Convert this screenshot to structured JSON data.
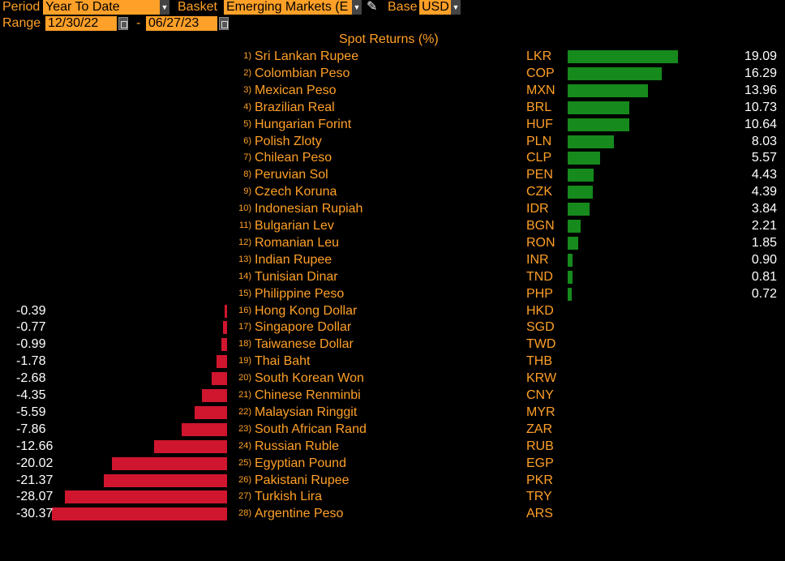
{
  "header": {
    "period_label": "Period",
    "period_value": "Year To Date",
    "basket_label": "Basket",
    "basket_value": "Emerging Markets (E",
    "base_label": "Base",
    "base_value": "USD",
    "range_label": "Range",
    "range_start": "12/30/22",
    "range_sep": "-",
    "range_end": "06/27/23"
  },
  "chart_data": {
    "type": "bar",
    "title": "Spot Returns (%)",
    "rows": [
      {
        "rank": "1)",
        "name": "Sri Lankan Rupee",
        "code": "LKR",
        "value": 19.09,
        "label": "19.09"
      },
      {
        "rank": "2)",
        "name": "Colombian Peso",
        "code": "COP",
        "value": 16.29,
        "label": "16.29"
      },
      {
        "rank": "3)",
        "name": "Mexican Peso",
        "code": "MXN",
        "value": 13.96,
        "label": "13.96"
      },
      {
        "rank": "4)",
        "name": "Brazilian Real",
        "code": "BRL",
        "value": 10.73,
        "label": "10.73"
      },
      {
        "rank": "5)",
        "name": "Hungarian Forint",
        "code": "HUF",
        "value": 10.64,
        "label": "10.64"
      },
      {
        "rank": "6)",
        "name": "Polish Zloty",
        "code": "PLN",
        "value": 8.03,
        "label": "8.03"
      },
      {
        "rank": "7)",
        "name": "Chilean Peso",
        "code": "CLP",
        "value": 5.57,
        "label": "5.57"
      },
      {
        "rank": "8)",
        "name": "Peruvian Sol",
        "code": "PEN",
        "value": 4.43,
        "label": "4.43"
      },
      {
        "rank": "9)",
        "name": "Czech Koruna",
        "code": "CZK",
        "value": 4.39,
        "label": "4.39"
      },
      {
        "rank": "10)",
        "name": "Indonesian Rupiah",
        "code": "IDR",
        "value": 3.84,
        "label": "3.84"
      },
      {
        "rank": "11)",
        "name": "Bulgarian Lev",
        "code": "BGN",
        "value": 2.21,
        "label": "2.21"
      },
      {
        "rank": "12)",
        "name": "Romanian Leu",
        "code": "RON",
        "value": 1.85,
        "label": "1.85"
      },
      {
        "rank": "13)",
        "name": "Indian Rupee",
        "code": "INR",
        "value": 0.9,
        "label": "0.90"
      },
      {
        "rank": "14)",
        "name": "Tunisian Dinar",
        "code": "TND",
        "value": 0.81,
        "label": "0.81"
      },
      {
        "rank": "15)",
        "name": "Philippine Peso",
        "code": "PHP",
        "value": 0.72,
        "label": "0.72"
      },
      {
        "rank": "16)",
        "name": "Hong Kong Dollar",
        "code": "HKD",
        "value": -0.39,
        "label": "-0.39"
      },
      {
        "rank": "17)",
        "name": "Singapore Dollar",
        "code": "SGD",
        "value": -0.77,
        "label": "-0.77"
      },
      {
        "rank": "18)",
        "name": "Taiwanese Dollar",
        "code": "TWD",
        "value": -0.99,
        "label": "-0.99"
      },
      {
        "rank": "19)",
        "name": "Thai Baht",
        "code": "THB",
        "value": -1.78,
        "label": "-1.78"
      },
      {
        "rank": "20)",
        "name": "South Korean Won",
        "code": "KRW",
        "value": -2.68,
        "label": "-2.68"
      },
      {
        "rank": "21)",
        "name": "Chinese Renminbi",
        "code": "CNY",
        "value": -4.35,
        "label": "-4.35"
      },
      {
        "rank": "22)",
        "name": "Malaysian Ringgit",
        "code": "MYR",
        "value": -5.59,
        "label": "-5.59"
      },
      {
        "rank": "23)",
        "name": "South African Rand",
        "code": "ZAR",
        "value": -7.86,
        "label": "-7.86"
      },
      {
        "rank": "24)",
        "name": "Russian Ruble",
        "code": "RUB",
        "value": -12.66,
        "label": "-12.66"
      },
      {
        "rank": "25)",
        "name": "Egyptian Pound",
        "code": "EGP",
        "value": -20.02,
        "label": "-20.02"
      },
      {
        "rank": "26)",
        "name": "Pakistani Rupee",
        "code": "PKR",
        "value": -21.37,
        "label": "-21.37"
      },
      {
        "rank": "27)",
        "name": "Turkish Lira",
        "code": "TRY",
        "value": -28.07,
        "label": "-28.07"
      },
      {
        "rank": "28)",
        "name": "Argentine Peso",
        "code": "ARS",
        "value": -30.37,
        "label": "-30.37"
      }
    ]
  },
  "colors": {
    "accent": "#ffa028",
    "positive": "#168a1c",
    "negative": "#d0162f",
    "background": "#000000"
  }
}
